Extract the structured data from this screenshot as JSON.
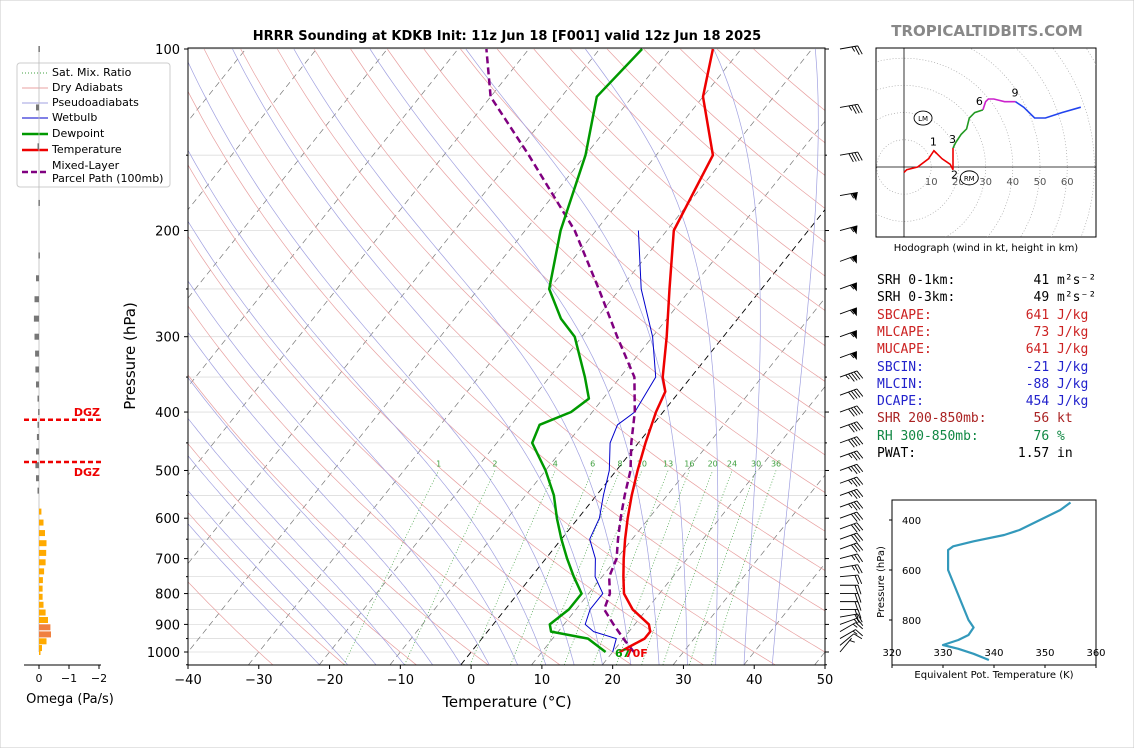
{
  "title": "HRRR Sounding at KDKB Init: 11z Jun 18 [F001] valid 12z Jun 18 2025",
  "site_credit": "TROPICALTIDBITS.COM",
  "colors": {
    "temperature": "#ee0000",
    "dewpoint": "#009900",
    "wetbulb": "#0000cc",
    "parcel": "#800080",
    "dry_adiabat": "#e8a0a0",
    "pseudoadiabat": "#a0a0e0",
    "mixing_ratio": "#40a040",
    "dgz": "#ee0000",
    "hodo_0_1": "#ee0000",
    "hodo_1_3": "#ee0000",
    "hodo_3_6": "#229922",
    "hodo_6_9": "#cc22cc",
    "hodo_9_plus": "#2244ee",
    "theta_e": "#3399bb",
    "omega_down": "#ffaa00",
    "omega_up_gray": "#777777"
  },
  "chart_data": [
    {
      "type": "line",
      "name": "skew-t",
      "xlabel": "Temperature (°C)",
      "ylabel": "Pressure (hPa)",
      "xlim": [
        -40,
        50
      ],
      "ylim": [
        1050,
        100
      ],
      "y_scale": "log",
      "x_ticks": [
        -40,
        -30,
        -20,
        -10,
        0,
        10,
        20,
        30,
        40,
        50
      ],
      "y_ticks": [
        100,
        200,
        300,
        400,
        500,
        600,
        700,
        800,
        900,
        1000
      ],
      "grid": true,
      "legend_position": "top-left",
      "legend": [
        "Sat. Mix. Ratio",
        "Dry Adiabats",
        "Pseudoadiabats",
        "Wetbulb",
        "Dewpoint",
        "Temperature",
        "Mixed-Layer\nParcel Path (100mb)"
      ],
      "mixing_ratio_labels": [
        "1",
        "2",
        "4",
        "6",
        "8",
        "10",
        "13",
        "16",
        "20",
        "24",
        "30",
        "36"
      ],
      "surface_dewpoint_label": "67",
      "surface_temp_label": "70F",
      "series": [
        {
          "name": "Temperature",
          "points": [
            [
              21,
              1000
            ],
            [
              23,
              950
            ],
            [
              23,
              925
            ],
            [
              22,
              900
            ],
            [
              18,
              850
            ],
            [
              15,
              800
            ],
            [
              13,
              750
            ],
            [
              11,
              700
            ],
            [
              9,
              650
            ],
            [
              7,
              600
            ],
            [
              5,
              550
            ],
            [
              3,
              500
            ],
            [
              1,
              450
            ],
            [
              -1,
              400
            ],
            [
              -2,
              370
            ],
            [
              -4,
              350
            ],
            [
              -8,
              300
            ],
            [
              -13,
              250
            ],
            [
              -19,
              200
            ],
            [
              -22,
              150
            ],
            [
              -30,
              120
            ],
            [
              -34,
              100
            ]
          ]
        },
        {
          "name": "Dewpoint",
          "points": [
            [
              19,
              1000
            ],
            [
              15,
              950
            ],
            [
              9,
              925
            ],
            [
              8,
              900
            ],
            [
              9,
              850
            ],
            [
              9,
              800
            ],
            [
              6,
              750
            ],
            [
              3,
              700
            ],
            [
              0,
              650
            ],
            [
              -3,
              600
            ],
            [
              -6,
              550
            ],
            [
              -10,
              500
            ],
            [
              -15,
              450
            ],
            [
              -16,
              420
            ],
            [
              -13,
              400
            ],
            [
              -12,
              380
            ],
            [
              -15,
              350
            ],
            [
              -21,
              300
            ],
            [
              -25,
              280
            ],
            [
              -30,
              250
            ],
            [
              -35,
              200
            ],
            [
              -40,
              150
            ],
            [
              -45,
              120
            ],
            [
              -44,
              100
            ]
          ]
        },
        {
          "name": "Wetbulb",
          "points": [
            [
              20,
              1000
            ],
            [
              19,
              950
            ],
            [
              15,
              925
            ],
            [
              13,
              900
            ],
            [
              12,
              850
            ],
            [
              12,
              800
            ],
            [
              9,
              750
            ],
            [
              7,
              700
            ],
            [
              4,
              650
            ],
            [
              3,
              600
            ],
            [
              1,
              550
            ],
            [
              -1,
              500
            ],
            [
              -4,
              450
            ],
            [
              -5,
              420
            ],
            [
              -4,
              400
            ],
            [
              -5,
              350
            ],
            [
              -10,
              300
            ],
            [
              -17,
              250
            ],
            [
              -24,
              200
            ]
          ]
        },
        {
          "name": "Mixed-Layer Parcel Path (100mb)",
          "points": [
            [
              23,
              1000
            ],
            [
              20,
              950
            ],
            [
              17,
              900
            ],
            [
              14,
              850
            ],
            [
              13,
              800
            ],
            [
              11,
              750
            ],
            [
              10,
              700
            ],
            [
              8,
              650
            ],
            [
              6,
              600
            ],
            [
              4,
              550
            ],
            [
              2,
              500
            ],
            [
              -1,
              450
            ],
            [
              -4,
              400
            ],
            [
              -8,
              350
            ],
            [
              -15,
              300
            ],
            [
              -23,
              250
            ],
            [
              -33,
              200
            ],
            [
              -48,
              150
            ],
            [
              -60,
              120
            ],
            [
              -66,
              100
            ]
          ]
        }
      ]
    },
    {
      "type": "bar",
      "name": "omega",
      "xlabel": "Omega (Pa/s)",
      "x_ticks": [
        "0",
        "−1",
        "−2"
      ],
      "dgz_label": "DGZ",
      "dgz_levels_hpa": [
        412,
        484
      ],
      "bars": [
        {
          "p": 1000,
          "v": 0.03
        },
        {
          "p": 985,
          "v": 0.1
        },
        {
          "p": 960,
          "v": 0.25
        },
        {
          "p": 935,
          "v": 0.4
        },
        {
          "p": 910,
          "v": 0.38
        },
        {
          "p": 885,
          "v": 0.3
        },
        {
          "p": 860,
          "v": 0.22
        },
        {
          "p": 835,
          "v": 0.15
        },
        {
          "p": 810,
          "v": 0.12
        },
        {
          "p": 785,
          "v": 0.12
        },
        {
          "p": 760,
          "v": 0.13
        },
        {
          "p": 735,
          "v": 0.17
        },
        {
          "p": 710,
          "v": 0.22
        },
        {
          "p": 685,
          "v": 0.24
        },
        {
          "p": 660,
          "v": 0.25
        },
        {
          "p": 635,
          "v": 0.2
        },
        {
          "p": 610,
          "v": 0.15
        },
        {
          "p": 585,
          "v": 0.08
        },
        {
          "p": 540,
          "v": -0.05
        },
        {
          "p": 515,
          "v": -0.1
        },
        {
          "p": 490,
          "v": -0.12
        },
        {
          "p": 465,
          "v": -0.1
        },
        {
          "p": 440,
          "v": -0.07
        },
        {
          "p": 420,
          "v": -0.05
        },
        {
          "p": 400,
          "v": -0.03
        },
        {
          "p": 380,
          "v": -0.05
        },
        {
          "p": 360,
          "v": -0.1
        },
        {
          "p": 340,
          "v": -0.12
        },
        {
          "p": 320,
          "v": -0.13
        },
        {
          "p": 300,
          "v": -0.15
        },
        {
          "p": 280,
          "v": -0.17
        },
        {
          "p": 260,
          "v": -0.15
        },
        {
          "p": 240,
          "v": -0.1
        },
        {
          "p": 220,
          "v": -0.02
        },
        {
          "p": 180,
          "v": -0.02
        },
        {
          "p": 145,
          "v": -0.05
        },
        {
          "p": 125,
          "v": -0.1
        },
        {
          "p": 100,
          "v": -0.02
        }
      ]
    },
    {
      "type": "line",
      "name": "hodograph",
      "caption": "Hodograph (wind in kt, height in km)",
      "ring_labels": [
        "10",
        "20",
        "30",
        "40",
        "50",
        "60"
      ],
      "height_labels": [
        "1",
        "2",
        "3",
        "6",
        "9"
      ],
      "lm_label": "LM",
      "rm_label": "RM",
      "segments": [
        {
          "name": "0-1km",
          "points": [
            [
              0,
              -2
            ],
            [
              1,
              -1
            ],
            [
              5,
              0
            ],
            [
              9,
              3
            ],
            [
              11,
              6
            ],
            [
              12,
              5
            ]
          ]
        },
        {
          "name": "1-3km",
          "points": [
            [
              11,
              6
            ],
            [
              14,
              3
            ],
            [
              17,
              1
            ],
            [
              18,
              -1
            ],
            [
              18,
              0
            ],
            [
              18,
              3
            ],
            [
              18,
              7
            ]
          ]
        },
        {
          "name": "3-6km",
          "points": [
            [
              18,
              7
            ],
            [
              19,
              9
            ],
            [
              21,
              12
            ],
            [
              23,
              14
            ],
            [
              24,
              18
            ],
            [
              26,
              20
            ],
            [
              29,
              21
            ]
          ]
        },
        {
          "name": "6-9km",
          "points": [
            [
              29,
              21
            ],
            [
              30,
              24
            ],
            [
              31,
              25
            ],
            [
              32,
              25
            ],
            [
              33,
              25
            ],
            [
              37,
              24
            ],
            [
              41,
              24
            ]
          ]
        },
        {
          "name": "9+km",
          "points": [
            [
              41,
              24
            ],
            [
              44,
              22
            ],
            [
              48,
              18
            ],
            [
              52,
              18
            ],
            [
              58,
              20
            ],
            [
              65,
              22
            ]
          ]
        }
      ],
      "storm_motion": {
        "lm": [
          7,
          18
        ],
        "rm": [
          24,
          -4
        ]
      }
    },
    {
      "type": "line",
      "name": "theta-e",
      "xlabel": "Equivalent Pot. Temperature (K)",
      "ylabel": "Pressure (hPa)",
      "xlim": [
        320,
        360
      ],
      "x_ticks": [
        "320",
        "330",
        "340",
        "350",
        "360"
      ],
      "y_ticks": [
        "400",
        "600",
        "800"
      ],
      "points": [
        [
          339,
          960
        ],
        [
          336,
          935
        ],
        [
          333,
          915
        ],
        [
          330,
          900
        ],
        [
          333,
          880
        ],
        [
          335,
          860
        ],
        [
          336,
          830
        ],
        [
          335,
          800
        ],
        [
          334,
          750
        ],
        [
          333,
          700
        ],
        [
          332,
          650
        ],
        [
          331,
          600
        ],
        [
          331,
          550
        ],
        [
          331,
          520
        ],
        [
          332,
          505
        ],
        [
          336,
          485
        ],
        [
          342,
          460
        ],
        [
          345,
          440
        ],
        [
          349,
          400
        ],
        [
          353,
          360
        ],
        [
          355,
          330
        ]
      ]
    }
  ],
  "wind_barbs": [
    {
      "p": 1000,
      "spd": 5,
      "dir": 220
    },
    {
      "p": 975,
      "spd": 10,
      "dir": 230
    },
    {
      "p": 950,
      "spd": 15,
      "dir": 240
    },
    {
      "p": 925,
      "spd": 15,
      "dir": 240
    },
    {
      "p": 900,
      "spd": 15,
      "dir": 250
    },
    {
      "p": 875,
      "spd": 20,
      "dir": 260
    },
    {
      "p": 850,
      "spd": 20,
      "dir": 270
    },
    {
      "p": 825,
      "spd": 20,
      "dir": 270
    },
    {
      "p": 800,
      "spd": 20,
      "dir": 270
    },
    {
      "p": 775,
      "spd": 20,
      "dir": 270
    },
    {
      "p": 750,
      "spd": 20,
      "dir": 265
    },
    {
      "p": 725,
      "spd": 25,
      "dir": 260
    },
    {
      "p": 700,
      "spd": 25,
      "dir": 255
    },
    {
      "p": 675,
      "spd": 30,
      "dir": 250
    },
    {
      "p": 650,
      "spd": 30,
      "dir": 250
    },
    {
      "p": 625,
      "spd": 30,
      "dir": 250
    },
    {
      "p": 600,
      "spd": 30,
      "dir": 250
    },
    {
      "p": 575,
      "spd": 35,
      "dir": 250
    },
    {
      "p": 550,
      "spd": 35,
      "dir": 250
    },
    {
      "p": 525,
      "spd": 35,
      "dir": 250
    },
    {
      "p": 500,
      "spd": 35,
      "dir": 250
    },
    {
      "p": 475,
      "spd": 35,
      "dir": 250
    },
    {
      "p": 450,
      "spd": 40,
      "dir": 250
    },
    {
      "p": 425,
      "spd": 40,
      "dir": 250
    },
    {
      "p": 400,
      "spd": 40,
      "dir": 250
    },
    {
      "p": 375,
      "spd": 40,
      "dir": 250
    },
    {
      "p": 350,
      "spd": 45,
      "dir": 250
    },
    {
      "p": 325,
      "spd": 55,
      "dir": 250
    },
    {
      "p": 300,
      "spd": 55,
      "dir": 250
    },
    {
      "p": 275,
      "spd": 55,
      "dir": 250
    },
    {
      "p": 250,
      "spd": 55,
      "dir": 250
    },
    {
      "p": 225,
      "spd": 55,
      "dir": 250
    },
    {
      "p": 200,
      "spd": 55,
      "dir": 255
    },
    {
      "p": 175,
      "spd": 55,
      "dir": 260
    },
    {
      "p": 150,
      "spd": 40,
      "dir": 260
    },
    {
      "p": 125,
      "spd": 35,
      "dir": 260
    },
    {
      "p": 100,
      "spd": 25,
      "dir": 260
    }
  ],
  "stats": [
    {
      "label": "SRH 0-1km:",
      "value": "41",
      "unit": "m²s⁻²",
      "color": "#000000"
    },
    {
      "label": "SRH 0-3km:",
      "value": "49",
      "unit": "m²s⁻²",
      "color": "#000000"
    },
    {
      "label": "SBCAPE:",
      "value": "641",
      "unit": "J/kg",
      "color": "#cc2222"
    },
    {
      "label": "MLCAPE:",
      "value": "73",
      "unit": "J/kg",
      "color": "#cc2222"
    },
    {
      "label": "MUCAPE:",
      "value": "641",
      "unit": "J/kg",
      "color": "#cc2222"
    },
    {
      "label": "SBCIN:",
      "value": "-21",
      "unit": "J/kg",
      "color": "#2222cc"
    },
    {
      "label": "MLCIN:",
      "value": "-88",
      "unit": "J/kg",
      "color": "#2222cc"
    },
    {
      "label": "DCAPE:",
      "value": "454",
      "unit": "J/kg",
      "color": "#2222cc"
    },
    {
      "label": "SHR 200-850mb:",
      "value": "56",
      "unit": "kt",
      "color": "#aa2222"
    },
    {
      "label": "RH 300-850mb:",
      "value": "76",
      "unit": "%",
      "color": "#118844"
    },
    {
      "label": "PWAT:",
      "value": "1.57",
      "unit": "in",
      "color": "#000000"
    }
  ]
}
